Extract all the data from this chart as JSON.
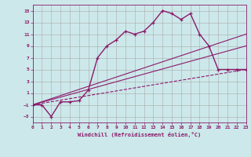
{
  "xlabel": "Windchill (Refroidissement éolien,°C)",
  "bg_color": "#cce8ea",
  "line_color": "#8b1a6b",
  "grid_color": "#aaaaaa",
  "xlim": [
    0,
    23
  ],
  "ylim": [
    -4,
    16
  ],
  "yticks": [
    -3,
    -1,
    1,
    3,
    5,
    7,
    9,
    11,
    13,
    15
  ],
  "xticks": [
    0,
    1,
    2,
    3,
    4,
    5,
    6,
    7,
    8,
    9,
    10,
    11,
    12,
    13,
    14,
    15,
    16,
    17,
    18,
    19,
    20,
    21,
    22,
    23
  ],
  "line1_x": [
    0,
    1,
    2,
    3,
    4,
    5,
    6,
    7,
    8,
    9,
    10,
    11,
    12,
    13,
    14,
    15,
    16,
    17,
    18,
    19,
    20,
    21,
    22,
    23
  ],
  "line1_y": [
    -1,
    -1,
    -3,
    -0.5,
    -0.5,
    -0.3,
    1.5,
    7,
    9,
    10,
    11.5,
    11,
    11.5,
    13,
    15,
    14.5,
    13.5,
    14.5,
    11,
    9,
    5,
    5,
    5,
    5
  ],
  "line2_x": [
    0,
    23
  ],
  "line2_y": [
    -1,
    11
  ],
  "line3_x": [
    0,
    23
  ],
  "line3_y": [
    -1,
    9
  ],
  "line4_x": [
    0,
    23
  ],
  "line4_y": [
    -1,
    5
  ]
}
